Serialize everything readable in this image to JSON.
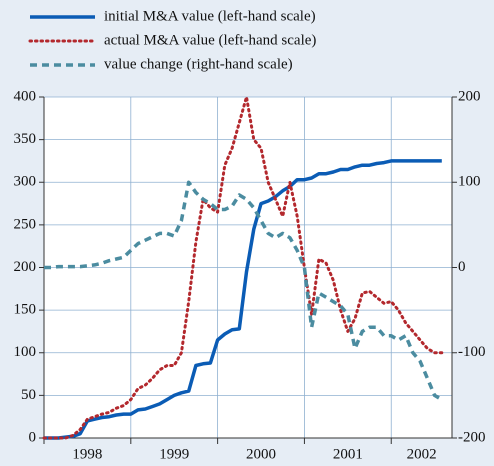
{
  "chart_data": {
    "type": "line",
    "x": [
      1998,
      1998.083,
      1998.167,
      1998.25,
      1998.333,
      1998.417,
      1998.5,
      1998.583,
      1998.667,
      1998.75,
      1998.833,
      1998.917,
      1999,
      1999.083,
      1999.167,
      1999.25,
      1999.333,
      1999.417,
      1999.5,
      1999.583,
      1999.667,
      1999.75,
      1999.833,
      1999.917,
      2000,
      2000.083,
      2000.167,
      2000.25,
      2000.333,
      2000.417,
      2000.5,
      2000.583,
      2000.667,
      2000.75,
      2000.833,
      2000.917,
      2001,
      2001.083,
      2001.167,
      2001.25,
      2001.333,
      2001.417,
      2001.5,
      2001.583,
      2001.667,
      2001.75,
      2001.833,
      2001.917,
      2002,
      2002.083,
      2002.167,
      2002.25,
      2002.333,
      2002.417,
      2002.5,
      2002.583
    ],
    "xlim": [
      1998,
      2002.7
    ],
    "xticks": [
      1998,
      1999,
      2000,
      2001,
      2002
    ],
    "ylim": [
      0,
      400
    ],
    "yticks": [
      0,
      50,
      100,
      150,
      200,
      250,
      300,
      350,
      400
    ],
    "y2lim": [
      -200,
      200
    ],
    "y2ticks": [
      -200,
      -100,
      0,
      100,
      200
    ],
    "grid": true,
    "series": [
      {
        "name": "initial M&A value (left-hand scale)",
        "color": "#0b5cb5",
        "style": "solid",
        "values": [
          0,
          0,
          0,
          1,
          2,
          5,
          20,
          22,
          24,
          25,
          27,
          28,
          28,
          33,
          34,
          37,
          40,
          45,
          50,
          53,
          55,
          85,
          87,
          88,
          115,
          122,
          127,
          128,
          195,
          245,
          275,
          278,
          283,
          290,
          295,
          303,
          303,
          305,
          310,
          310,
          312,
          315,
          315,
          318,
          320,
          320,
          322,
          323,
          325,
          325,
          325,
          325,
          325,
          325,
          325,
          325
        ]
      },
      {
        "name": "actual M&A value (left-hand scale)",
        "color": "#b3282d",
        "style": "dotted",
        "values": [
          0,
          0,
          0,
          0,
          3,
          10,
          22,
          25,
          28,
          30,
          35,
          38,
          45,
          58,
          62,
          70,
          80,
          85,
          85,
          100,
          160,
          230,
          280,
          270,
          265,
          320,
          340,
          370,
          400,
          350,
          340,
          300,
          280,
          260,
          300,
          260,
          200,
          145,
          210,
          205,
          185,
          150,
          125,
          140,
          170,
          172,
          165,
          158,
          160,
          150,
          135,
          125,
          115,
          105,
          100,
          100
        ]
      },
      {
        "name": "value change (right-hand scale)",
        "color": "#4b8ca0",
        "style": "dashed",
        "axis": "y2",
        "values": [
          0,
          0,
          1,
          1,
          1,
          1,
          2,
          3,
          5,
          8,
          10,
          12,
          20,
          28,
          32,
          36,
          40,
          40,
          37,
          55,
          100,
          88,
          80,
          75,
          68,
          68,
          72,
          85,
          80,
          70,
          55,
          40,
          35,
          40,
          35,
          20,
          0,
          -70,
          -30,
          -35,
          -40,
          -45,
          -55,
          -95,
          -75,
          -70,
          -70,
          -80,
          -80,
          -85,
          -80,
          -100,
          -110,
          -130,
          -150,
          -155
        ]
      }
    ]
  }
}
